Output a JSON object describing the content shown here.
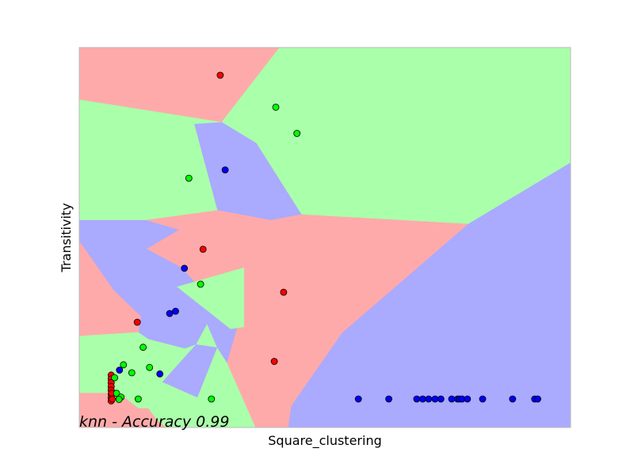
{
  "chart_data": {
    "type": "scatter",
    "title": "",
    "xlabel": "Square_clustering",
    "ylabel": "Transitivity",
    "annotation": "knn - Accuracy 0.99",
    "xlim": [
      0,
      1
    ],
    "ylim": [
      0,
      1
    ],
    "grid": false,
    "ticks_visible": false,
    "legend": "none",
    "colors": {
      "region_red": "#FFAAAA",
      "region_green": "#AAFFAA",
      "region_blue": "#AAAAFF",
      "point_red": "#FF0000",
      "point_green": "#00FF00",
      "point_blue": "#0000FF",
      "frame": "#BBBBBB"
    },
    "regions": [
      {
        "class": "red",
        "polygon": [
          [
            0,
            1
          ],
          [
            0.408,
            1
          ],
          [
            0.29,
            0.803
          ],
          [
            0,
            0.862
          ]
        ]
      },
      {
        "class": "green",
        "polygon": [
          [
            0.408,
            1
          ],
          [
            1,
            1
          ],
          [
            1,
            0.696
          ],
          [
            0.792,
            0.535
          ],
          [
            0.452,
            0.56
          ],
          [
            0.36,
            0.748
          ],
          [
            0.29,
            0.803
          ]
        ]
      },
      {
        "class": "green",
        "polygon": [
          [
            0,
            0.862
          ],
          [
            0.29,
            0.803
          ],
          [
            0.235,
            0.798
          ],
          [
            0.282,
            0.571
          ],
          [
            0.135,
            0.545
          ],
          [
            0,
            0.545
          ]
        ]
      },
      {
        "class": "blue",
        "polygon": [
          [
            0.235,
            0.798
          ],
          [
            0.29,
            0.803
          ],
          [
            0.36,
            0.748
          ],
          [
            0.452,
            0.56
          ],
          [
            0.39,
            0.545
          ],
          [
            0.282,
            0.571
          ]
        ]
      },
      {
        "class": "red",
        "polygon": [
          [
            0.135,
            0.545
          ],
          [
            0.282,
            0.571
          ],
          [
            0.39,
            0.545
          ],
          [
            0.452,
            0.56
          ],
          [
            0.792,
            0.535
          ],
          [
            0.535,
            0.248
          ],
          [
            0.432,
            0.056
          ],
          [
            0.426,
            0
          ],
          [
            0.358,
            0
          ],
          [
            0.3,
            0.17
          ],
          [
            0.32,
            0.26
          ],
          [
            0.208,
            0.42
          ],
          [
            0.136,
            0.47
          ],
          [
            0.202,
            0.52
          ]
        ]
      },
      {
        "class": "blue",
        "polygon": [
          [
            0.792,
            0.535
          ],
          [
            1,
            0.696
          ],
          [
            1,
            0
          ],
          [
            0.426,
            0
          ],
          [
            0.432,
            0.056
          ],
          [
            0.535,
            0.248
          ]
        ]
      },
      {
        "class": "blue",
        "polygon": [
          [
            0,
            0.545
          ],
          [
            0.135,
            0.545
          ],
          [
            0.202,
            0.52
          ],
          [
            0.136,
            0.47
          ],
          [
            0.208,
            0.42
          ],
          [
            0.32,
            0.26
          ],
          [
            0.3,
            0.17
          ],
          [
            0.28,
            0.21
          ],
          [
            0.26,
            0.27
          ],
          [
            0.238,
            0.218
          ],
          [
            0.215,
            0.207
          ],
          [
            0.14,
            0.232
          ],
          [
            0.12,
            0.25
          ],
          [
            0.125,
            0.292
          ],
          [
            0.07,
            0.36
          ],
          [
            0,
            0.49
          ]
        ]
      },
      {
        "class": "green",
        "polygon": [
          [
            0.2,
            0.37
          ],
          [
            0.335,
            0.42
          ],
          [
            0.335,
            0.265
          ],
          [
            0.308,
            0.26
          ]
        ]
      },
      {
        "class": "red",
        "polygon": [
          [
            0,
            0.49
          ],
          [
            0.07,
            0.36
          ],
          [
            0.125,
            0.292
          ],
          [
            0.12,
            0.25
          ],
          [
            0,
            0.24
          ]
        ]
      },
      {
        "class": "green",
        "polygon": [
          [
            0,
            0.24
          ],
          [
            0.12,
            0.25
          ],
          [
            0.14,
            0.232
          ],
          [
            0.215,
            0.207
          ],
          [
            0.238,
            0.218
          ],
          [
            0.26,
            0.27
          ],
          [
            0.28,
            0.21
          ],
          [
            0.3,
            0.17
          ],
          [
            0.358,
            0
          ],
          [
            0.176,
            0
          ],
          [
            0.157,
            0.02
          ],
          [
            0.14,
            0.05
          ],
          [
            0.12,
            0.05
          ],
          [
            0.08,
            0.09
          ],
          [
            0,
            0.09
          ]
        ]
      },
      {
        "class": "blue",
        "polygon": [
          [
            0.238,
            0.218
          ],
          [
            0.17,
            0.12
          ],
          [
            0.24,
            0.08
          ],
          [
            0.28,
            0.21
          ]
        ]
      },
      {
        "class": "red",
        "polygon": [
          [
            0,
            0.09
          ],
          [
            0.08,
            0.09
          ],
          [
            0.12,
            0.05
          ],
          [
            0.14,
            0.05
          ],
          [
            0.157,
            0.02
          ],
          [
            0.176,
            0
          ],
          [
            0,
            0
          ]
        ]
      }
    ],
    "series": [
      {
        "class": "red",
        "points": [
          [
            0.287,
            0.927
          ],
          [
            0.252,
            0.469
          ],
          [
            0.416,
            0.356
          ],
          [
            0.118,
            0.277
          ],
          [
            0.397,
            0.174
          ],
          [
            0.065,
            0.138
          ],
          [
            0.065,
            0.128
          ],
          [
            0.065,
            0.118
          ],
          [
            0.065,
            0.108
          ],
          [
            0.065,
            0.098
          ],
          [
            0.065,
            0.088
          ],
          [
            0.065,
            0.078
          ],
          [
            0.065,
            0.07
          ],
          [
            0.067,
            0.075
          ],
          [
            0.066,
            0.09
          ]
        ]
      },
      {
        "class": "green",
        "points": [
          [
            0.4,
            0.843
          ],
          [
            0.443,
            0.774
          ],
          [
            0.223,
            0.656
          ],
          [
            0.247,
            0.377
          ],
          [
            0.13,
            0.211
          ],
          [
            0.09,
            0.165
          ],
          [
            0.107,
            0.144
          ],
          [
            0.143,
            0.158
          ],
          [
            0.072,
            0.131
          ],
          [
            0.076,
            0.09
          ],
          [
            0.085,
            0.08
          ],
          [
            0.081,
            0.074
          ],
          [
            0.12,
            0.075
          ],
          [
            0.269,
            0.075
          ]
        ]
      },
      {
        "class": "blue",
        "points": [
          [
            0.297,
            0.678
          ],
          [
            0.214,
            0.419
          ],
          [
            0.196,
            0.306
          ],
          [
            0.184,
            0.3
          ],
          [
            0.082,
            0.151
          ],
          [
            0.164,
            0.141
          ],
          [
            0.568,
            0.075
          ],
          [
            0.63,
            0.075
          ],
          [
            0.687,
            0.075
          ],
          [
            0.699,
            0.075
          ],
          [
            0.711,
            0.075
          ],
          [
            0.724,
            0.075
          ],
          [
            0.736,
            0.075
          ],
          [
            0.758,
            0.075
          ],
          [
            0.77,
            0.075
          ],
          [
            0.774,
            0.075
          ],
          [
            0.779,
            0.075
          ],
          [
            0.79,
            0.075
          ],
          [
            0.821,
            0.075
          ],
          [
            0.882,
            0.075
          ],
          [
            0.927,
            0.075
          ],
          [
            0.933,
            0.075
          ]
        ]
      }
    ]
  }
}
